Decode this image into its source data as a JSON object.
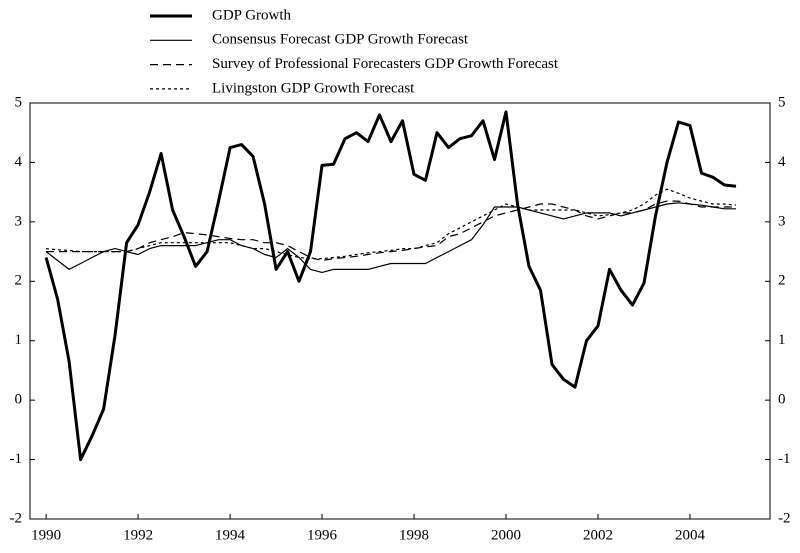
{
  "chart_data": {
    "type": "line",
    "x": [
      1990,
      1990.25,
      1990.5,
      1990.75,
      1991,
      1991.25,
      1991.5,
      1991.75,
      1992,
      1992.25,
      1992.5,
      1992.75,
      1993,
      1993.25,
      1993.5,
      1993.75,
      1994,
      1994.25,
      1994.5,
      1994.75,
      1995,
      1995.25,
      1995.5,
      1995.75,
      1996,
      1996.25,
      1996.5,
      1996.75,
      1997,
      1997.25,
      1997.5,
      1997.75,
      1998,
      1998.25,
      1998.5,
      1998.75,
      1999,
      1999.25,
      1999.5,
      1999.75,
      2000,
      2000.25,
      2000.5,
      2000.75,
      2001,
      2001.25,
      2001.5,
      2001.75,
      2002,
      2002.25,
      2002.5,
      2002.75,
      2003,
      2003.25,
      2003.5,
      2003.75,
      2004,
      2004.25,
      2004.5,
      2004.75,
      2005
    ],
    "series": [
      {
        "name": "GDP Growth",
        "color": "#000000",
        "width": 3,
        "style": "solid",
        "values": [
          2.4,
          1.7,
          0.65,
          -1.0,
          -0.6,
          -0.15,
          1.1,
          2.65,
          2.95,
          3.5,
          4.15,
          3.2,
          2.75,
          2.25,
          2.5,
          3.35,
          4.25,
          4.3,
          4.1,
          3.3,
          2.2,
          2.5,
          2.0,
          2.5,
          3.95,
          3.97,
          4.4,
          4.5,
          4.35,
          4.8,
          4.35,
          4.7,
          3.8,
          3.7,
          4.5,
          4.25,
          4.4,
          4.45,
          4.7,
          4.05,
          4.85,
          3.3,
          2.25,
          1.85,
          0.6,
          0.35,
          0.22,
          1.0,
          1.25,
          2.2,
          1.85,
          1.6,
          1.97,
          3.1,
          4.0,
          4.68,
          4.62,
          3.82,
          3.75,
          3.62,
          3.6
        ]
      },
      {
        "name": "Consensus Forecast GDP Growth Forecast",
        "color": "#000000",
        "width": 1.2,
        "style": "solid",
        "values": [
          2.5,
          2.35,
          2.2,
          2.3,
          2.4,
          2.5,
          2.55,
          2.5,
          2.45,
          2.55,
          2.6,
          2.6,
          2.6,
          2.6,
          2.65,
          2.7,
          2.7,
          2.6,
          2.55,
          2.45,
          2.4,
          2.55,
          2.4,
          2.2,
          2.15,
          2.2,
          2.2,
          2.2,
          2.2,
          2.25,
          2.3,
          2.3,
          2.3,
          2.3,
          2.4,
          2.5,
          2.6,
          2.7,
          2.95,
          3.25,
          3.25,
          3.25,
          3.2,
          3.15,
          3.1,
          3.05,
          3.1,
          3.15,
          3.15,
          3.15,
          3.1,
          3.15,
          3.2,
          3.25,
          3.3,
          3.32,
          3.3,
          3.28,
          3.25,
          3.22,
          3.22
        ]
      },
      {
        "name": "Survey of Professional Forecasters GDP Growth Forecast",
        "color": "#000000",
        "width": 1.2,
        "style": "dashed",
        "values": [
          2.5,
          2.5,
          2.5,
          2.5,
          2.5,
          2.5,
          2.5,
          2.5,
          2.55,
          2.65,
          2.7,
          2.75,
          2.82,
          2.8,
          2.78,
          2.75,
          2.72,
          2.7,
          2.7,
          2.65,
          2.65,
          2.6,
          2.5,
          2.4,
          2.35,
          2.38,
          2.4,
          2.42,
          2.45,
          2.48,
          2.5,
          2.52,
          2.55,
          2.58,
          2.6,
          2.75,
          2.8,
          2.9,
          3.0,
          3.1,
          3.15,
          3.2,
          3.25,
          3.3,
          3.3,
          3.25,
          3.2,
          3.1,
          3.05,
          3.1,
          3.15,
          3.15,
          3.2,
          3.3,
          3.35,
          3.35,
          3.3,
          3.25,
          3.25,
          3.25,
          3.25
        ]
      },
      {
        "name": "Livingston GDP Growth Forecast",
        "color": "#000000",
        "width": 1.2,
        "style": "dotted",
        "values": [
          2.55,
          2.53,
          2.52,
          2.5,
          2.5,
          2.5,
          2.5,
          2.5,
          2.55,
          2.6,
          2.65,
          2.65,
          2.65,
          2.65,
          2.65,
          2.65,
          2.65,
          2.6,
          2.55,
          2.55,
          2.5,
          2.45,
          2.4,
          2.38,
          2.38,
          2.4,
          2.42,
          2.45,
          2.48,
          2.5,
          2.52,
          2.55,
          2.55,
          2.6,
          2.65,
          2.8,
          2.9,
          3.0,
          3.1,
          3.2,
          3.3,
          3.25,
          3.2,
          3.2,
          3.2,
          3.2,
          3.2,
          3.15,
          3.1,
          3.12,
          3.15,
          3.2,
          3.3,
          3.45,
          3.55,
          3.48,
          3.4,
          3.35,
          3.3,
          3.3,
          3.28
        ]
      }
    ],
    "xlim": [
      1989.65,
      2005.74
    ],
    "xticks": [
      1990,
      1992,
      1994,
      1996,
      1998,
      2000,
      2002,
      2004
    ],
    "ylim": [
      -2,
      5
    ],
    "yticks": [
      -2,
      -1,
      0,
      1,
      2,
      3,
      4,
      5
    ],
    "right_axis": true,
    "grid": false
  }
}
